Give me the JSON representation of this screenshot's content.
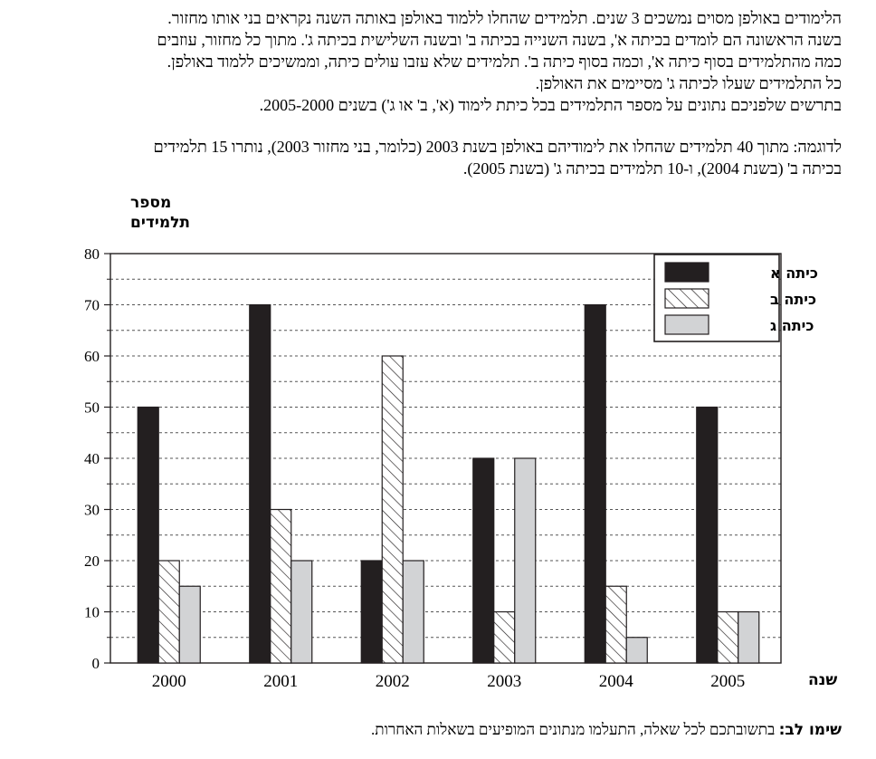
{
  "intro": {
    "lines": [
      "הלימודים באולפן מסוים נמשכים 3 שנים.  תלמידים שהחלו ללמוד באולפן באותה השנה נקראים בני אותו מחזור.",
      "בשנה הראשונה הם לומדים בכיתה א', בשנה השנייה בכיתה ב' ובשנה השלישית בכיתה ג'.  מתוך כל מחזור, עוזבים",
      "כמה מהתלמידים בסוף כיתה א', וכמה בסוף כיתה ב'.  תלמידים שלא עזבו עולים כיתה, וממשיכים ללמוד באולפן.",
      "כל התלמידים שעלו לכיתה ג' מסיימים את האולפן.",
      "בתרשים שלפניכם נתונים על מספר התלמידים בכל כיתת לימוד (א', ב' או ג') בשנים 2005-2000."
    ]
  },
  "example": {
    "lines": [
      "לדוגמה: מתוך 40 תלמידים שהחלו את לימודיהם באולפן בשנת 2003 (כלומר, בני מחזור 2003), נותרו 15 תלמידים",
      "בכיתה ב' (בשנת 2004), ו-10 תלמידים בכיתה ג' (בשנת 2005)."
    ]
  },
  "chart_data": {
    "type": "bar",
    "title": "",
    "ylabel": [
      "מספר",
      "תלמידים"
    ],
    "xlabel": "שנה",
    "categories": [
      "2000",
      "2001",
      "2002",
      "2003",
      "2004",
      "2005"
    ],
    "series": [
      {
        "name": "כיתה א",
        "values": [
          50,
          70,
          20,
          40,
          70,
          50
        ],
        "fill": "solid",
        "color": "#231f20"
      },
      {
        "name": "כיתה ב",
        "values": [
          20,
          30,
          60,
          10,
          15,
          10
        ],
        "fill": "hatched",
        "color": "#ffffff"
      },
      {
        "name": "כיתה ג",
        "values": [
          15,
          20,
          20,
          40,
          5,
          10
        ],
        "fill": "light",
        "color": "#d2d3d5"
      }
    ],
    "ylim": [
      0,
      80
    ],
    "yticks": [
      0,
      10,
      20,
      30,
      40,
      50,
      60,
      70,
      80
    ],
    "grid": "dashed horizontal every 5",
    "legend": "top-right"
  },
  "note": {
    "bold": "שימו לב:",
    "text": " בתשובתכם לכל שאלה, התעלמו מנתונים המופיעים בשאלות האחרות."
  }
}
